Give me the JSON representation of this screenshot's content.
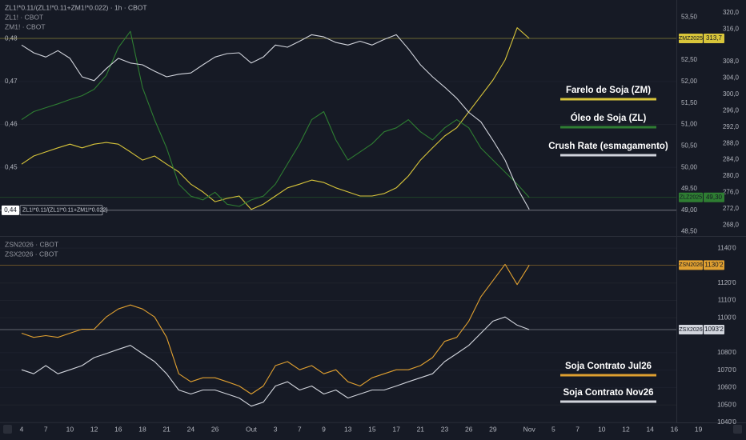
{
  "chart_data": [
    {
      "type": "line",
      "title": "ZL1!*0.11/(ZL1!*0.11+ZM1!*0.022) · 1h · CBOT",
      "subtitles": [
        "ZL1! · CBOT",
        "ZM1! · CBOT"
      ],
      "y_axis_side": "left",
      "grid": true,
      "ylim": [
        0.434,
        0.489
      ],
      "yticks": [
        {
          "value": 0.45,
          "label": "0,45"
        },
        {
          "value": 0.46,
          "label": "0,46"
        },
        {
          "value": 0.47,
          "label": "0,47"
        },
        {
          "value": 0.48,
          "label": "0,48"
        }
      ],
      "y2lim": [
        48.4,
        53.9
      ],
      "y2ticks": [
        {
          "value": 48.5,
          "label": "48,50"
        },
        {
          "value": 49,
          "label": "49,00"
        },
        {
          "value": 49.5,
          "label": "49,50"
        },
        {
          "value": 50,
          "label": "50,00"
        },
        {
          "value": 50.5,
          "label": "50,50"
        },
        {
          "value": 51,
          "label": "51,00"
        },
        {
          "value": 51.5,
          "label": "51,50"
        },
        {
          "value": 52,
          "label": "52,00"
        },
        {
          "value": 52.5,
          "label": "52,50"
        },
        {
          "value": 53,
          "label": "53,00"
        },
        {
          "value": 53.5,
          "label": "53,50"
        }
      ],
      "y3lim": [
        265.3,
        323.1
      ],
      "y3ticks": [
        {
          "value": 268,
          "label": "268,0"
        },
        {
          "value": 272,
          "label": "272,0"
        },
        {
          "value": 276,
          "label": "276,0"
        },
        {
          "value": 280,
          "label": "280,0"
        },
        {
          "value": 284,
          "label": "284,0"
        },
        {
          "value": 288,
          "label": "288,0"
        },
        {
          "value": 292,
          "label": "292,0"
        },
        {
          "value": 296,
          "label": "296,0"
        },
        {
          "value": 300,
          "label": "300,0"
        },
        {
          "value": 304,
          "label": "304,0"
        },
        {
          "value": 308,
          "label": "308,0"
        },
        {
          "value": 316,
          "label": "316,0"
        },
        {
          "value": 320,
          "label": "320,0"
        }
      ],
      "series": [
        {
          "name": "Farelo de Soja (ZM)",
          "color": "#d8c53a",
          "axis": "y3",
          "price_tag": {
            "symbol": "ZMZ2025",
            "value": 313.7,
            "label": "313,7",
            "side": "right"
          },
          "values": [
            282.9,
            284.9,
            285.9,
            286.9,
            287.8,
            286.9,
            287.8,
            288.2,
            287.8,
            285.9,
            283.9,
            284.9,
            282.9,
            281.0,
            278.0,
            276.1,
            273.7,
            274.5,
            275.1,
            271.8,
            273.1,
            275.1,
            277.1,
            278.0,
            279.0,
            278.4,
            277.1,
            276.1,
            275.1,
            275.1,
            275.7,
            277.1,
            280.0,
            283.9,
            286.9,
            289.8,
            291.8,
            295.7,
            299.6,
            303.5,
            308.4,
            316.3,
            313.7,
            null,
            null,
            null,
            null,
            null,
            null,
            null,
            null,
            null,
            null,
            null,
            null,
            null,
            null
          ]
        },
        {
          "name": "Óleo de Soja (ZL)",
          "color": "#2e7d32",
          "axis": "y2",
          "price_tag": {
            "symbol": "ZLZ2025",
            "value": 49.3,
            "label": "49,30",
            "side": "right"
          },
          "values": [
            51.11,
            51.3,
            51.39,
            51.48,
            51.58,
            51.67,
            51.82,
            52.14,
            52.79,
            53.17,
            51.86,
            51.11,
            50.45,
            49.61,
            49.33,
            49.24,
            49.42,
            49.14,
            49.09,
            49.24,
            49.33,
            49.61,
            50.08,
            50.55,
            51.11,
            51.3,
            50.64,
            50.17,
            50.36,
            50.55,
            50.83,
            50.92,
            51.11,
            50.83,
            50.64,
            50.92,
            51.11,
            50.92,
            50.45,
            50.17,
            49.89,
            49.61,
            49.3,
            null,
            null,
            null,
            null,
            null,
            null,
            null,
            null,
            null,
            null,
            null,
            null,
            null,
            null
          ]
        },
        {
          "name": "Crush Rate (esmagamento)",
          "color": "#d1d4dc",
          "axis": "y",
          "price_tag": {
            "symbol": "ZL1!*0.11/(ZL1!*0.11+ZM1!*0.022)",
            "value": 0.44,
            "label": "0,44",
            "side": "left"
          },
          "values": [
            0.4785,
            0.4767,
            0.4757,
            0.4772,
            0.4754,
            0.4711,
            0.4702,
            0.473,
            0.4754,
            0.4743,
            0.4739,
            0.4724,
            0.4711,
            0.4717,
            0.472,
            0.4739,
            0.4757,
            0.4765,
            0.4767,
            0.4743,
            0.4757,
            0.4785,
            0.478,
            0.4794,
            0.4809,
            0.4804,
            0.4791,
            0.4785,
            0.4794,
            0.4785,
            0.4798,
            0.4809,
            0.4776,
            0.4739,
            0.4711,
            0.4687,
            0.4661,
            0.4628,
            0.4606,
            0.4563,
            0.4517,
            0.4452,
            0.4402,
            null,
            null,
            null,
            null,
            null,
            null,
            null,
            null,
            null,
            null,
            null,
            null,
            null,
            null
          ]
        }
      ]
    },
    {
      "type": "line",
      "subtitles": [
        "ZSN2026 · CBOT",
        "ZSX2026 · CBOT"
      ],
      "y_axis_side": "right",
      "grid": true,
      "categories": [
        "4",
        null,
        "7",
        null,
        "10",
        null,
        "12",
        null,
        "16",
        null,
        "18",
        null,
        "21",
        null,
        "24",
        null,
        "26",
        null,
        null,
        "Out",
        null,
        "3",
        null,
        "7",
        null,
        "9",
        null,
        "13",
        null,
        "15",
        null,
        "17",
        null,
        "21",
        null,
        "23",
        null,
        "26",
        null,
        "29",
        null,
        null,
        "Nov",
        null,
        "5",
        null,
        "7",
        null,
        "10",
        null,
        "12",
        null,
        "14",
        null,
        "16",
        null,
        "19"
      ],
      "ylim": [
        1040,
        1146.5
      ],
      "yticks": [
        {
          "value": 1040,
          "label": "1040'0"
        },
        {
          "value": 1050,
          "label": "1050'0"
        },
        {
          "value": 1060,
          "label": "1060'0"
        },
        {
          "value": 1070,
          "label": "1070'0"
        },
        {
          "value": 1080,
          "label": "1080'0"
        },
        {
          "value": 1100,
          "label": "1100'0"
        },
        {
          "value": 1110,
          "label": "1110'0"
        },
        {
          "value": 1120,
          "label": "1120'0"
        },
        {
          "value": 1140,
          "label": "1140'0"
        }
      ],
      "series": [
        {
          "name": "Soja Contrato Jul26",
          "color": "#e0a030",
          "axis": "y",
          "price_tag": {
            "symbol": "ZSN2026",
            "value": 1130.25,
            "label": "1130'2",
            "side": "right"
          },
          "values": [
            1091.2,
            1088.8,
            1089.8,
            1088.8,
            1091.2,
            1093.5,
            1093.5,
            1100.5,
            1105.1,
            1107.4,
            1105.1,
            1100.5,
            1088.8,
            1067.9,
            1063.3,
            1065.6,
            1065.6,
            1063.3,
            1060.9,
            1056.3,
            1060.9,
            1072.6,
            1074.9,
            1070.2,
            1072.6,
            1067.9,
            1070.2,
            1063.3,
            1060.9,
            1065.6,
            1067.9,
            1070.2,
            1070.2,
            1072.6,
            1077.2,
            1086.5,
            1088.8,
            1098.1,
            1112.1,
            1121.4,
            1130.7,
            1119.1,
            1130.25,
            null,
            null,
            null,
            null,
            null,
            null,
            null,
            null,
            null,
            null,
            null,
            null,
            null,
            null
          ]
        },
        {
          "name": "Soja Contrato Nov26",
          "color": "#d1d4dc",
          "axis": "y",
          "price_tag": {
            "symbol": "ZSX2026",
            "value": 1093.25,
            "label": "1093'2",
            "side": "right"
          },
          "values": [
            1070.2,
            1067.9,
            1072.6,
            1067.9,
            1070.2,
            1072.6,
            1077.2,
            1079.5,
            1081.9,
            1084.2,
            1079.5,
            1074.9,
            1067.9,
            1058.6,
            1056.3,
            1058.6,
            1058.6,
            1056.3,
            1054.0,
            1049.3,
            1051.6,
            1060.9,
            1063.3,
            1058.6,
            1060.9,
            1056.3,
            1058.6,
            1054.0,
            1056.3,
            1058.6,
            1058.6,
            1060.9,
            1063.3,
            1065.6,
            1067.9,
            1074.9,
            1079.5,
            1084.2,
            1091.2,
            1098.1,
            1100.5,
            1095.8,
            1093.25,
            null,
            null,
            null,
            null,
            null,
            null,
            null,
            null,
            null,
            null,
            null,
            null,
            null,
            null
          ]
        }
      ]
    }
  ]
}
